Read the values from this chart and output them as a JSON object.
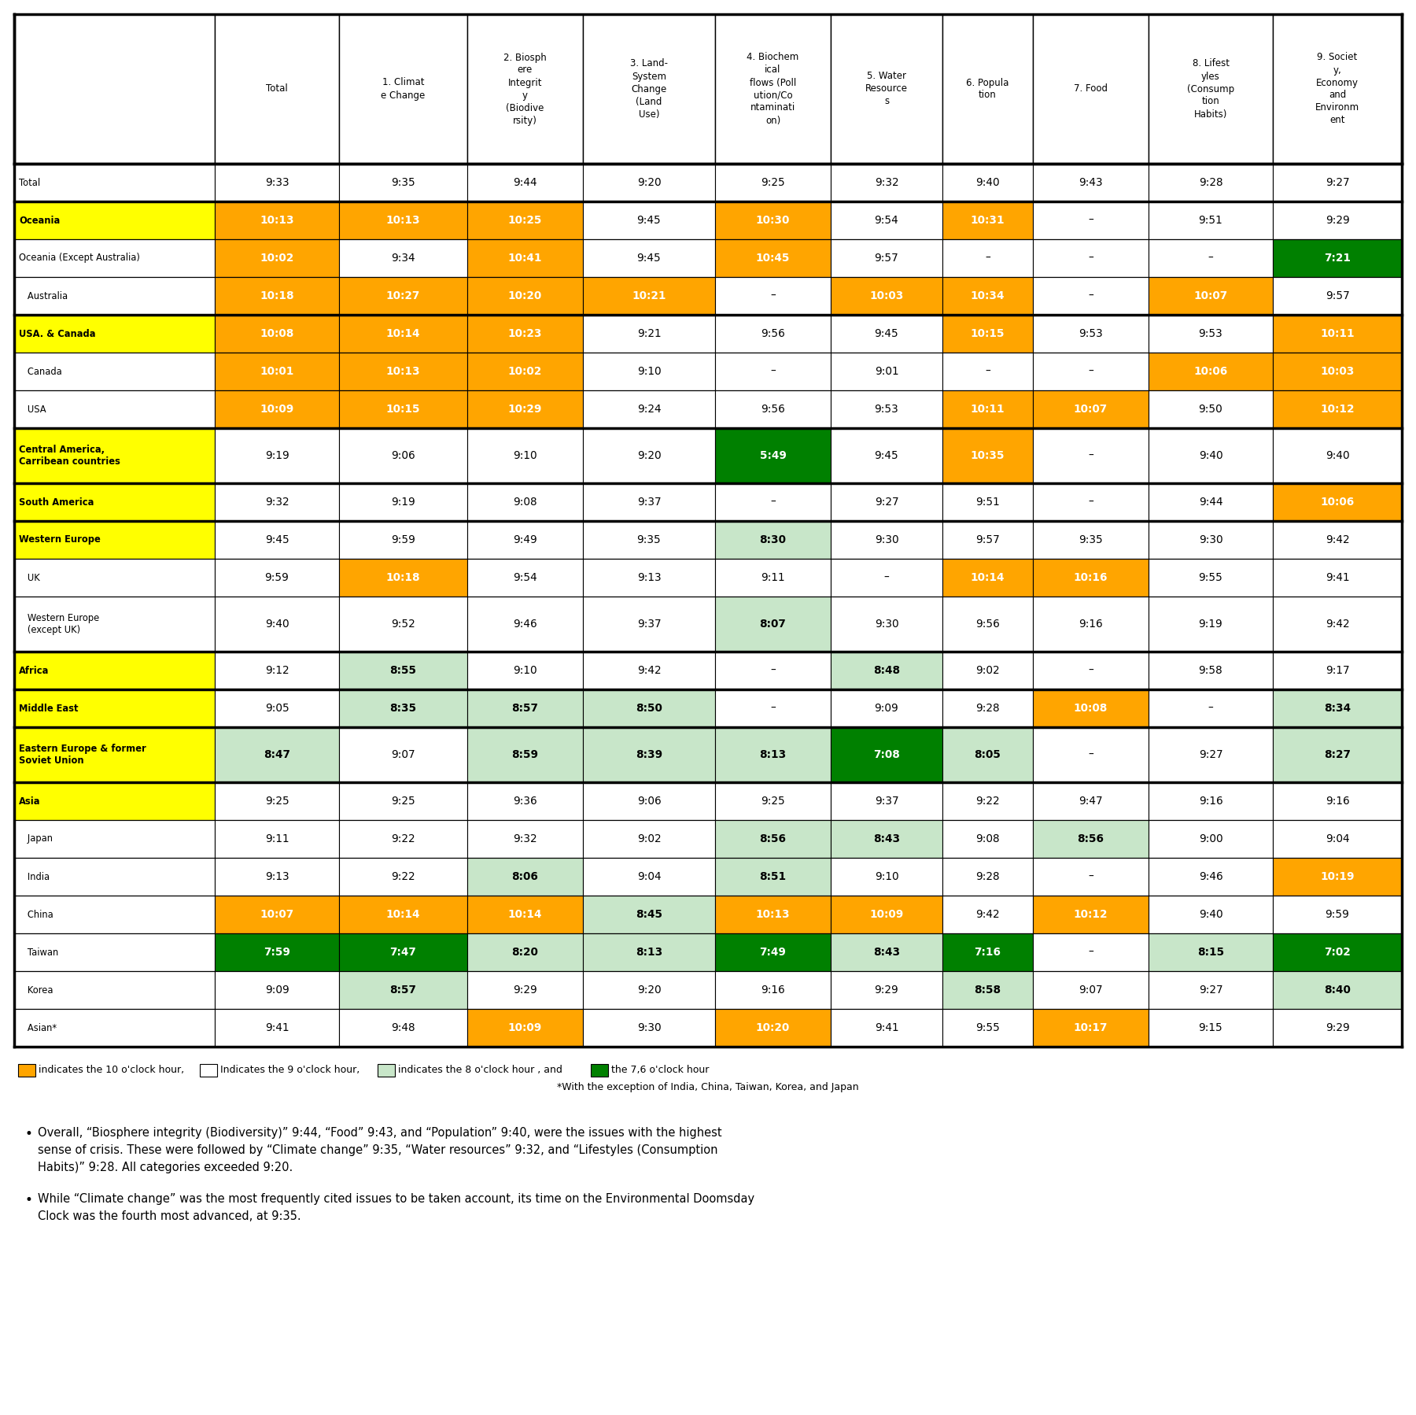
{
  "col_headers": [
    "Total",
    "1. Climat\ne Change",
    "2. Biosph\nere\nIntegrit\ny\n(Biodive\nrsity)",
    "3. Land-\nSystem\nChange\n(Land\nUse)",
    "4. Biochem\nical\nflows (Poll\nution/Co\nntaminati\non)",
    "5. Water\nResource\ns",
    "6. Popula\ntion",
    "7. Food",
    "8. Lifest\nyles\n(Consump\ntion\nHabits)",
    "9. Societ\ny,\nEconomy\nand\nEnvironm\nent"
  ],
  "rows": [
    {
      "label": "Total",
      "label_bg": "#ffffff",
      "label_color": "#000000",
      "label_bold": false,
      "label_indent": false,
      "values": [
        "9:33",
        "9:35",
        "9:44",
        "9:20",
        "9:25",
        "9:32",
        "9:40",
        "9:43",
        "9:28",
        "9:27"
      ],
      "cell_colors": [
        "#ffffff",
        "#ffffff",
        "#ffffff",
        "#ffffff",
        "#ffffff",
        "#ffffff",
        "#ffffff",
        "#ffffff",
        "#ffffff",
        "#ffffff"
      ],
      "text_colors": [
        "#000000",
        "#000000",
        "#000000",
        "#000000",
        "#000000",
        "#000000",
        "#000000",
        "#000000",
        "#000000",
        "#000000"
      ],
      "thick_above": true
    },
    {
      "label": "Oceania",
      "label_bg": "#ffff00",
      "label_color": "#000000",
      "label_bold": true,
      "label_indent": false,
      "values": [
        "10:13",
        "10:13",
        "10:25",
        "9:45",
        "10:30",
        "9:54",
        "10:31",
        "–",
        "9:51",
        "9:29"
      ],
      "cell_colors": [
        "#ffa500",
        "#ffa500",
        "#ffa500",
        "#ffffff",
        "#ffa500",
        "#ffffff",
        "#ffa500",
        "#ffffff",
        "#ffffff",
        "#ffffff"
      ],
      "text_colors": [
        "#ffffff",
        "#ffffff",
        "#ffffff",
        "#000000",
        "#ffffff",
        "#000000",
        "#ffffff",
        "#000000",
        "#000000",
        "#000000"
      ],
      "thick_above": true
    },
    {
      "label": "Oceania (Except Australia)",
      "label_bg": "#ffffff",
      "label_color": "#000000",
      "label_bold": false,
      "label_indent": false,
      "values": [
        "10:02",
        "9:34",
        "10:41",
        "9:45",
        "10:45",
        "9:57",
        "–",
        "–",
        "–",
        "7:21"
      ],
      "cell_colors": [
        "#ffa500",
        "#ffffff",
        "#ffa500",
        "#ffffff",
        "#ffa500",
        "#ffffff",
        "#ffffff",
        "#ffffff",
        "#ffffff",
        "#008000"
      ],
      "text_colors": [
        "#ffffff",
        "#000000",
        "#ffffff",
        "#000000",
        "#ffffff",
        "#000000",
        "#000000",
        "#000000",
        "#000000",
        "#ffffff"
      ],
      "thick_above": false
    },
    {
      "label": "   Australia",
      "label_bg": "#ffffff",
      "label_color": "#000000",
      "label_bold": false,
      "label_indent": true,
      "values": [
        "10:18",
        "10:27",
        "10:20",
        "10:21",
        "–",
        "10:03",
        "10:34",
        "–",
        "10:07",
        "9:57"
      ],
      "cell_colors": [
        "#ffa500",
        "#ffa500",
        "#ffa500",
        "#ffa500",
        "#ffffff",
        "#ffa500",
        "#ffa500",
        "#ffffff",
        "#ffa500",
        "#ffffff"
      ],
      "text_colors": [
        "#ffffff",
        "#ffffff",
        "#ffffff",
        "#ffffff",
        "#000000",
        "#ffffff",
        "#ffffff",
        "#000000",
        "#ffffff",
        "#000000"
      ],
      "thick_above": false
    },
    {
      "label": "USA. & Canada",
      "label_bg": "#ffff00",
      "label_color": "#000000",
      "label_bold": true,
      "label_indent": false,
      "values": [
        "10:08",
        "10:14",
        "10:23",
        "9:21",
        "9:56",
        "9:45",
        "10:15",
        "9:53",
        "9:53",
        "10:11"
      ],
      "cell_colors": [
        "#ffa500",
        "#ffa500",
        "#ffa500",
        "#ffffff",
        "#ffffff",
        "#ffffff",
        "#ffa500",
        "#ffffff",
        "#ffffff",
        "#ffa500"
      ],
      "text_colors": [
        "#ffffff",
        "#ffffff",
        "#ffffff",
        "#000000",
        "#000000",
        "#000000",
        "#ffffff",
        "#000000",
        "#000000",
        "#ffffff"
      ],
      "thick_above": true
    },
    {
      "label": "   Canada",
      "label_bg": "#ffffff",
      "label_color": "#000000",
      "label_bold": false,
      "label_indent": true,
      "values": [
        "10:01",
        "10:13",
        "10:02",
        "9:10",
        "–",
        "9:01",
        "–",
        "–",
        "10:06",
        "10:03"
      ],
      "cell_colors": [
        "#ffa500",
        "#ffa500",
        "#ffa500",
        "#ffffff",
        "#ffffff",
        "#ffffff",
        "#ffffff",
        "#ffffff",
        "#ffa500",
        "#ffa500"
      ],
      "text_colors": [
        "#ffffff",
        "#ffffff",
        "#ffffff",
        "#000000",
        "#000000",
        "#000000",
        "#000000",
        "#000000",
        "#ffffff",
        "#ffffff"
      ],
      "thick_above": false
    },
    {
      "label": "   USA",
      "label_bg": "#ffffff",
      "label_color": "#000000",
      "label_bold": false,
      "label_indent": true,
      "values": [
        "10:09",
        "10:15",
        "10:29",
        "9:24",
        "9:56",
        "9:53",
        "10:11",
        "10:07",
        "9:50",
        "10:12"
      ],
      "cell_colors": [
        "#ffa500",
        "#ffa500",
        "#ffa500",
        "#ffffff",
        "#ffffff",
        "#ffffff",
        "#ffa500",
        "#ffa500",
        "#ffffff",
        "#ffa500"
      ],
      "text_colors": [
        "#ffffff",
        "#ffffff",
        "#ffffff",
        "#000000",
        "#000000",
        "#000000",
        "#ffffff",
        "#ffffff",
        "#000000",
        "#ffffff"
      ],
      "thick_above": false
    },
    {
      "label": "Central America,\nCarribean countries",
      "label_bg": "#ffff00",
      "label_color": "#000000",
      "label_bold": true,
      "label_indent": false,
      "values": [
        "9:19",
        "9:06",
        "9:10",
        "9:20",
        "5:49",
        "9:45",
        "10:35",
        "–",
        "9:40",
        "9:40"
      ],
      "cell_colors": [
        "#ffffff",
        "#ffffff",
        "#ffffff",
        "#ffffff",
        "#008000",
        "#ffffff",
        "#ffa500",
        "#ffffff",
        "#ffffff",
        "#ffffff"
      ],
      "text_colors": [
        "#000000",
        "#000000",
        "#000000",
        "#000000",
        "#ffffff",
        "#000000",
        "#ffffff",
        "#000000",
        "#000000",
        "#000000"
      ],
      "thick_above": true
    },
    {
      "label": "South America",
      "label_bg": "#ffff00",
      "label_color": "#000000",
      "label_bold": true,
      "label_indent": false,
      "values": [
        "9:32",
        "9:19",
        "9:08",
        "9:37",
        "–",
        "9:27",
        "9:51",
        "–",
        "9:44",
        "10:06"
      ],
      "cell_colors": [
        "#ffffff",
        "#ffffff",
        "#ffffff",
        "#ffffff",
        "#ffffff",
        "#ffffff",
        "#ffffff",
        "#ffffff",
        "#ffffff",
        "#ffa500"
      ],
      "text_colors": [
        "#000000",
        "#000000",
        "#000000",
        "#000000",
        "#000000",
        "#000000",
        "#000000",
        "#000000",
        "#000000",
        "#ffffff"
      ],
      "thick_above": true
    },
    {
      "label": "Western Europe",
      "label_bg": "#ffff00",
      "label_color": "#000000",
      "label_bold": true,
      "label_indent": false,
      "values": [
        "9:45",
        "9:59",
        "9:49",
        "9:35",
        "8:30",
        "9:30",
        "9:57",
        "9:35",
        "9:30",
        "9:42"
      ],
      "cell_colors": [
        "#ffffff",
        "#ffffff",
        "#ffffff",
        "#ffffff",
        "#c8e6c9",
        "#ffffff",
        "#ffffff",
        "#ffffff",
        "#ffffff",
        "#ffffff"
      ],
      "text_colors": [
        "#000000",
        "#000000",
        "#000000",
        "#000000",
        "#000000",
        "#000000",
        "#000000",
        "#000000",
        "#000000",
        "#000000"
      ],
      "thick_above": true
    },
    {
      "label": "   UK",
      "label_bg": "#ffffff",
      "label_color": "#000000",
      "label_bold": false,
      "label_indent": true,
      "values": [
        "9:59",
        "10:18",
        "9:54",
        "9:13",
        "9:11",
        "–",
        "10:14",
        "10:16",
        "9:55",
        "9:41"
      ],
      "cell_colors": [
        "#ffffff",
        "#ffa500",
        "#ffffff",
        "#ffffff",
        "#ffffff",
        "#ffffff",
        "#ffa500",
        "#ffa500",
        "#ffffff",
        "#ffffff"
      ],
      "text_colors": [
        "#000000",
        "#ffffff",
        "#000000",
        "#000000",
        "#000000",
        "#000000",
        "#ffffff",
        "#ffffff",
        "#000000",
        "#000000"
      ],
      "thick_above": false
    },
    {
      "label": "   Western Europe\n   (except UK)",
      "label_bg": "#ffffff",
      "label_color": "#000000",
      "label_bold": false,
      "label_indent": true,
      "values": [
        "9:40",
        "9:52",
        "9:46",
        "9:37",
        "8:07",
        "9:30",
        "9:56",
        "9:16",
        "9:19",
        "9:42"
      ],
      "cell_colors": [
        "#ffffff",
        "#ffffff",
        "#ffffff",
        "#ffffff",
        "#c8e6c9",
        "#ffffff",
        "#ffffff",
        "#ffffff",
        "#ffffff",
        "#ffffff"
      ],
      "text_colors": [
        "#000000",
        "#000000",
        "#000000",
        "#000000",
        "#000000",
        "#000000",
        "#000000",
        "#000000",
        "#000000",
        "#000000"
      ],
      "thick_above": false
    },
    {
      "label": "Africa",
      "label_bg": "#ffff00",
      "label_color": "#000000",
      "label_bold": true,
      "label_indent": false,
      "values": [
        "9:12",
        "8:55",
        "9:10",
        "9:42",
        "–",
        "8:48",
        "9:02",
        "–",
        "9:58",
        "9:17"
      ],
      "cell_colors": [
        "#ffffff",
        "#c8e6c9",
        "#ffffff",
        "#ffffff",
        "#ffffff",
        "#c8e6c9",
        "#ffffff",
        "#ffffff",
        "#ffffff",
        "#ffffff"
      ],
      "text_colors": [
        "#000000",
        "#000000",
        "#000000",
        "#000000",
        "#000000",
        "#000000",
        "#000000",
        "#000000",
        "#000000",
        "#000000"
      ],
      "thick_above": true
    },
    {
      "label": "Middle East",
      "label_bg": "#ffff00",
      "label_color": "#000000",
      "label_bold": true,
      "label_indent": false,
      "values": [
        "9:05",
        "8:35",
        "8:57",
        "8:50",
        "–",
        "9:09",
        "9:28",
        "10:08",
        "–",
        "8:34"
      ],
      "cell_colors": [
        "#ffffff",
        "#c8e6c9",
        "#c8e6c9",
        "#c8e6c9",
        "#ffffff",
        "#ffffff",
        "#ffffff",
        "#ffa500",
        "#ffffff",
        "#c8e6c9"
      ],
      "text_colors": [
        "#000000",
        "#000000",
        "#000000",
        "#000000",
        "#000000",
        "#000000",
        "#000000",
        "#ffffff",
        "#000000",
        "#000000"
      ],
      "thick_above": true
    },
    {
      "label": "Eastern Europe & former\nSoviet Union",
      "label_bg": "#ffff00",
      "label_color": "#000000",
      "label_bold": true,
      "label_indent": false,
      "values": [
        "8:47",
        "9:07",
        "8:59",
        "8:39",
        "8:13",
        "7:08",
        "8:05",
        "–",
        "9:27",
        "8:27"
      ],
      "cell_colors": [
        "#c8e6c9",
        "#ffffff",
        "#c8e6c9",
        "#c8e6c9",
        "#c8e6c9",
        "#008000",
        "#c8e6c9",
        "#ffffff",
        "#ffffff",
        "#c8e6c9"
      ],
      "text_colors": [
        "#000000",
        "#000000",
        "#000000",
        "#000000",
        "#000000",
        "#ffffff",
        "#000000",
        "#000000",
        "#000000",
        "#000000"
      ],
      "thick_above": true
    },
    {
      "label": "Asia",
      "label_bg": "#ffff00",
      "label_color": "#000000",
      "label_bold": true,
      "label_indent": false,
      "values": [
        "9:25",
        "9:25",
        "9:36",
        "9:06",
        "9:25",
        "9:37",
        "9:22",
        "9:47",
        "9:16",
        "9:16"
      ],
      "cell_colors": [
        "#ffffff",
        "#ffffff",
        "#ffffff",
        "#ffffff",
        "#ffffff",
        "#ffffff",
        "#ffffff",
        "#ffffff",
        "#ffffff",
        "#ffffff"
      ],
      "text_colors": [
        "#000000",
        "#000000",
        "#000000",
        "#000000",
        "#000000",
        "#000000",
        "#000000",
        "#000000",
        "#000000",
        "#000000"
      ],
      "thick_above": true
    },
    {
      "label": "   Japan",
      "label_bg": "#ffffff",
      "label_color": "#000000",
      "label_bold": false,
      "label_indent": true,
      "values": [
        "9:11",
        "9:22",
        "9:32",
        "9:02",
        "8:56",
        "8:43",
        "9:08",
        "8:56",
        "9:00",
        "9:04"
      ],
      "cell_colors": [
        "#ffffff",
        "#ffffff",
        "#ffffff",
        "#ffffff",
        "#c8e6c9",
        "#c8e6c9",
        "#ffffff",
        "#c8e6c9",
        "#ffffff",
        "#ffffff"
      ],
      "text_colors": [
        "#000000",
        "#000000",
        "#000000",
        "#000000",
        "#000000",
        "#000000",
        "#000000",
        "#000000",
        "#000000",
        "#000000"
      ],
      "thick_above": false
    },
    {
      "label": "   India",
      "label_bg": "#ffffff",
      "label_color": "#000000",
      "label_bold": false,
      "label_indent": true,
      "values": [
        "9:13",
        "9:22",
        "8:06",
        "9:04",
        "8:51",
        "9:10",
        "9:28",
        "–",
        "9:46",
        "10:19"
      ],
      "cell_colors": [
        "#ffffff",
        "#ffffff",
        "#c8e6c9",
        "#ffffff",
        "#c8e6c9",
        "#ffffff",
        "#ffffff",
        "#ffffff",
        "#ffffff",
        "#ffa500"
      ],
      "text_colors": [
        "#000000",
        "#000000",
        "#000000",
        "#000000",
        "#000000",
        "#000000",
        "#000000",
        "#000000",
        "#000000",
        "#ffffff"
      ],
      "thick_above": false
    },
    {
      "label": "   China",
      "label_bg": "#ffffff",
      "label_color": "#000000",
      "label_bold": false,
      "label_indent": true,
      "values": [
        "10:07",
        "10:14",
        "10:14",
        "8:45",
        "10:13",
        "10:09",
        "9:42",
        "10:12",
        "9:40",
        "9:59"
      ],
      "cell_colors": [
        "#ffa500",
        "#ffa500",
        "#ffa500",
        "#c8e6c9",
        "#ffa500",
        "#ffa500",
        "#ffffff",
        "#ffa500",
        "#ffffff",
        "#ffffff"
      ],
      "text_colors": [
        "#ffffff",
        "#ffffff",
        "#ffffff",
        "#000000",
        "#ffffff",
        "#ffffff",
        "#000000",
        "#ffffff",
        "#000000",
        "#000000"
      ],
      "thick_above": false
    },
    {
      "label": "   Taiwan",
      "label_bg": "#ffffff",
      "label_color": "#000000",
      "label_bold": false,
      "label_indent": true,
      "values": [
        "7:59",
        "7:47",
        "8:20",
        "8:13",
        "7:49",
        "8:43",
        "7:16",
        "–",
        "8:15",
        "7:02"
      ],
      "cell_colors": [
        "#008000",
        "#008000",
        "#c8e6c9",
        "#c8e6c9",
        "#008000",
        "#c8e6c9",
        "#008000",
        "#ffffff",
        "#c8e6c9",
        "#008000"
      ],
      "text_colors": [
        "#ffffff",
        "#ffffff",
        "#000000",
        "#000000",
        "#ffffff",
        "#000000",
        "#ffffff",
        "#000000",
        "#000000",
        "#ffffff"
      ],
      "thick_above": false
    },
    {
      "label": "   Korea",
      "label_bg": "#ffffff",
      "label_color": "#000000",
      "label_bold": false,
      "label_indent": true,
      "values": [
        "9:09",
        "8:57",
        "9:29",
        "9:20",
        "9:16",
        "9:29",
        "8:58",
        "9:07",
        "9:27",
        "8:40"
      ],
      "cell_colors": [
        "#ffffff",
        "#c8e6c9",
        "#ffffff",
        "#ffffff",
        "#ffffff",
        "#ffffff",
        "#c8e6c9",
        "#ffffff",
        "#ffffff",
        "#c8e6c9"
      ],
      "text_colors": [
        "#000000",
        "#000000",
        "#000000",
        "#000000",
        "#000000",
        "#000000",
        "#000000",
        "#000000",
        "#000000",
        "#000000"
      ],
      "thick_above": false
    },
    {
      "label": "   Asian*",
      "label_bg": "#ffffff",
      "label_color": "#000000",
      "label_bold": false,
      "label_indent": true,
      "values": [
        "9:41",
        "9:48",
        "10:09",
        "9:30",
        "10:20",
        "9:41",
        "9:55",
        "10:17",
        "9:15",
        "9:29"
      ],
      "cell_colors": [
        "#ffffff",
        "#ffffff",
        "#ffa500",
        "#ffffff",
        "#ffa500",
        "#ffffff",
        "#ffffff",
        "#ffa500",
        "#ffffff",
        "#ffffff"
      ],
      "text_colors": [
        "#000000",
        "#000000",
        "#ffffff",
        "#000000",
        "#ffffff",
        "#000000",
        "#000000",
        "#ffffff",
        "#000000",
        "#000000"
      ],
      "thick_above": false
    }
  ],
  "bullet_points": [
    "Overall, “Biosphere integrity (Biodiversity)” 9:44, “Food” 9:43, and “Population” 9:40, were the issues with the highest\nsense of crisis. These were followed by “Climate change” 9:35, “Water resources” 9:32, and “Lifestyles (Consumption\nHabits)” 9:28. All categories exceeded 9:20.",
    "While “Climate change” was the most frequently cited issues to be taken account, its time on the Environmental Doomsday\nClock was the fourth most advanced, at 9:35."
  ]
}
